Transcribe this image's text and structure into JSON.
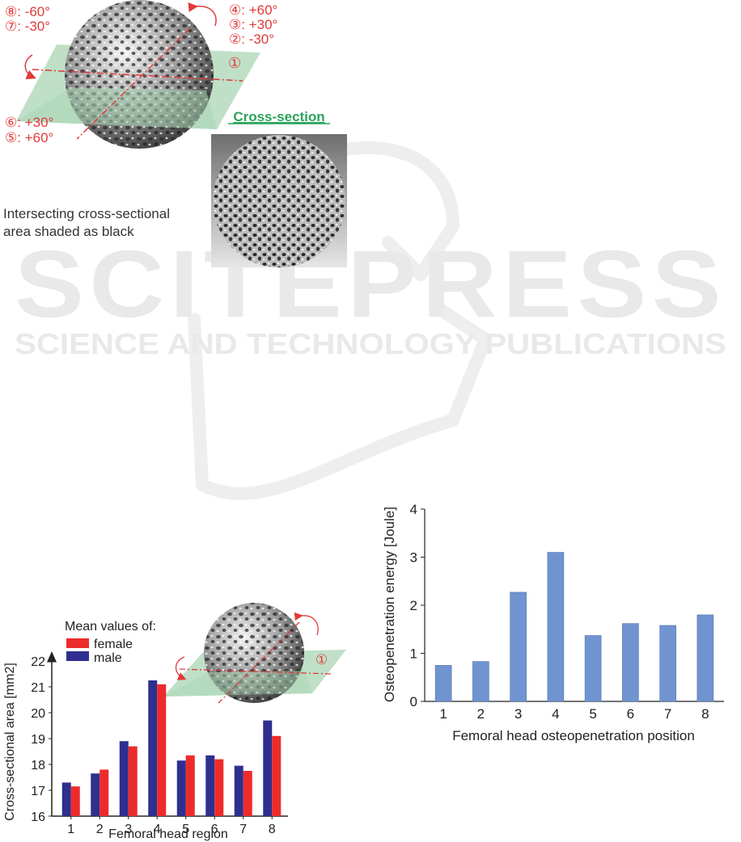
{
  "figure_top": {
    "angle_labels_top_left": [
      "⑧: -60°",
      "⑦: -30°"
    ],
    "angle_labels_top_right": [
      "④: +60°",
      "③: +30°",
      "②: -30°"
    ],
    "angle_labels_bottom_left": [
      "⑥: +30°",
      "⑤: +60°"
    ],
    "plane_marker": "①",
    "cross_section_title": "Cross-section",
    "caption_lines": [
      "Intersecting cross-sectional",
      "area shaded as black"
    ]
  },
  "watermark": {
    "main": "SCITEPRESS",
    "sub": "SCIENCE AND TECHNOLOGY PUBLICATIONS"
  },
  "colors": {
    "female": "#ee2b2b",
    "male": "#2e2f8f",
    "energy": "#7094d0",
    "plane": "#a9d5b4",
    "angle_text": "#e23a3a",
    "title_green": "#2aa35a"
  },
  "chart_left": {
    "legend_title": "Mean values of:",
    "inset_marker": "①",
    "chart_data": {
      "type": "bar",
      "categories": [
        "1",
        "2",
        "3",
        "4",
        "5",
        "6",
        "7",
        "8"
      ],
      "series": [
        {
          "name": "male",
          "values": [
            17.3,
            17.65,
            18.9,
            21.25,
            18.15,
            18.35,
            17.95,
            19.7
          ]
        },
        {
          "name": "female",
          "values": [
            17.15,
            17.8,
            18.7,
            21.1,
            18.35,
            18.2,
            17.75,
            19.1
          ]
        }
      ],
      "xlabel": "Femoral head region",
      "ylabel": "Cross-sectional area [mm2]",
      "ylim": [
        16,
        22
      ],
      "yticks": [
        16,
        17,
        18,
        19,
        20,
        21,
        22
      ],
      "legend": "top-left",
      "grid": false
    }
  },
  "chart_right": {
    "chart_data": {
      "type": "bar",
      "categories": [
        "1",
        "2",
        "3",
        "4",
        "5",
        "6",
        "7",
        "8"
      ],
      "values": [
        0.75,
        0.83,
        2.27,
        3.1,
        1.37,
        1.62,
        1.58,
        1.8
      ],
      "xlabel": "Femoral head osteopenetration position",
      "ylabel": "Osteopenetration energy [Joule]",
      "ylim": [
        0,
        4
      ],
      "yticks": [
        0,
        1,
        2,
        3,
        4
      ],
      "grid": false
    }
  }
}
